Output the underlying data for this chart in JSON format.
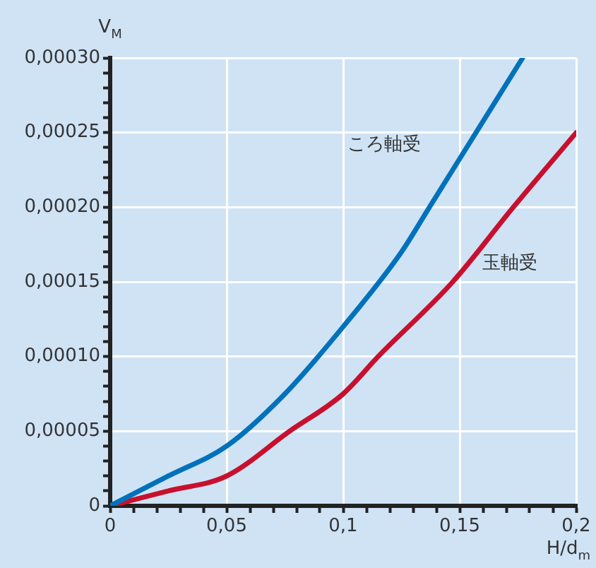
{
  "chart_data": {
    "type": "line",
    "xlabel": "H/d$_{m}$",
    "ylabel": "V$_{M}$",
    "xlim": [
      0,
      0.2
    ],
    "ylim": [
      0,
      0.0003
    ],
    "xticks": [
      {
        "value": 0,
        "label": "0"
      },
      {
        "value": 0.01,
        "label": null
      },
      {
        "value": 0.02,
        "label": null
      },
      {
        "value": 0.03,
        "label": null
      },
      {
        "value": 0.04,
        "label": null
      },
      {
        "value": 0.05,
        "label": "0,05"
      },
      {
        "value": 0.06,
        "label": null
      },
      {
        "value": 0.07,
        "label": null
      },
      {
        "value": 0.08,
        "label": null
      },
      {
        "value": 0.09,
        "label": null
      },
      {
        "value": 0.1,
        "label": "0,1"
      },
      {
        "value": 0.11,
        "label": null
      },
      {
        "value": 0.12,
        "label": null
      },
      {
        "value": 0.13,
        "label": null
      },
      {
        "value": 0.14,
        "label": null
      },
      {
        "value": 0.15,
        "label": "0,15"
      },
      {
        "value": 0.16,
        "label": null
      },
      {
        "value": 0.17,
        "label": null
      },
      {
        "value": 0.18,
        "label": null
      },
      {
        "value": 0.19,
        "label": null
      },
      {
        "value": 0.2,
        "label": "0,2"
      }
    ],
    "yticks": [
      {
        "value": 0,
        "label": "0"
      },
      {
        "value": 1e-05,
        "label": null
      },
      {
        "value": 2e-05,
        "label": null
      },
      {
        "value": 3e-05,
        "label": null
      },
      {
        "value": 4e-05,
        "label": null
      },
      {
        "value": 5e-05,
        "label": "0,00005"
      },
      {
        "value": 6e-05,
        "label": null
      },
      {
        "value": 7e-05,
        "label": null
      },
      {
        "value": 8e-05,
        "label": null
      },
      {
        "value": 9e-05,
        "label": null
      },
      {
        "value": 0.0001,
        "label": "0,00010"
      },
      {
        "value": 0.00011,
        "label": null
      },
      {
        "value": 0.00012,
        "label": null
      },
      {
        "value": 0.00013,
        "label": null
      },
      {
        "value": 0.00014,
        "label": null
      },
      {
        "value": 0.00015,
        "label": "0,00015"
      },
      {
        "value": 0.00016,
        "label": null
      },
      {
        "value": 0.00017,
        "label": null
      },
      {
        "value": 0.00018,
        "label": null
      },
      {
        "value": 0.00019,
        "label": null
      },
      {
        "value": 0.0002,
        "label": "0,00020"
      },
      {
        "value": 0.00021,
        "label": null
      },
      {
        "value": 0.00022,
        "label": null
      },
      {
        "value": 0.00023,
        "label": null
      },
      {
        "value": 0.00024,
        "label": null
      },
      {
        "value": 0.00025,
        "label": "0,00025"
      },
      {
        "value": 0.00026,
        "label": null
      },
      {
        "value": 0.00027,
        "label": null
      },
      {
        "value": 0.00028,
        "label": null
      },
      {
        "value": 0.00029,
        "label": null
      },
      {
        "value": 0.0003,
        "label": "0,00030"
      }
    ],
    "grid": true,
    "legend": false,
    "marker": "none",
    "line_style": "solid",
    "series": [
      {
        "name": "ころ軸受",
        "color": "#0071bb",
        "x": [
          0,
          0.025,
          0.05,
          0.075,
          0.1,
          0.125,
          0.137,
          0.157,
          0.177
        ],
        "values": [
          0,
          2e-05,
          4e-05,
          7.5e-05,
          0.00012,
          0.00017,
          0.0002,
          0.00025,
          0.0003
        ]
      },
      {
        "name": "玉軸受",
        "color": "#c8102e",
        "x": [
          0,
          0.025,
          0.05,
          0.077,
          0.1,
          0.115,
          0.147,
          0.173,
          0.2
        ],
        "values": [
          0,
          1e-05,
          2e-05,
          5e-05,
          7.5e-05,
          0.0001,
          0.00015,
          0.0002,
          0.00025
        ]
      }
    ]
  }
}
